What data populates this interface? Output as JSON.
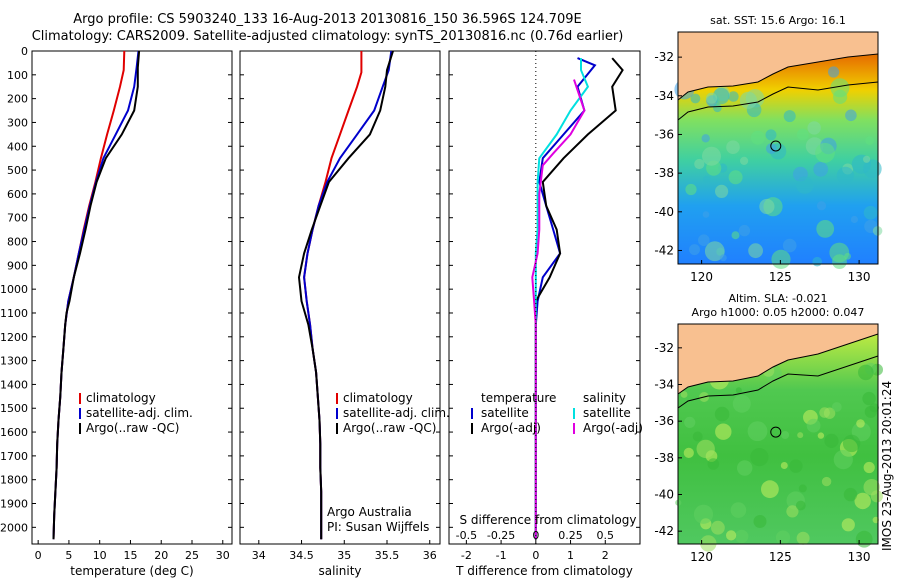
{
  "header": {
    "line1": "Argo profile: CS 5903240_133 16-Aug-2013 20130816_150 36.596S 124.709E",
    "line2": "Climatology: CARS2009. Satellite-adjusted climatology: synTS_20130816.nc (0.76d earlier)"
  },
  "colors": {
    "climatology": "#e00000",
    "satellite": "#0000cc",
    "argo": "#000000",
    "salinity_satellite": "#00e0e0",
    "salinity_argo": "#e000e0",
    "land": "#f8c090"
  },
  "footer_stamp": "IMOS 23-Aug-2013 20:01:24",
  "chart_data": [
    {
      "type": "line",
      "name": "temperature-profile",
      "xlabel": "temperature (deg C)",
      "ylabel": "",
      "xlim": [
        -1,
        31.5
      ],
      "ylim": [
        2070,
        0
      ],
      "xticks": [
        0,
        5,
        10,
        15,
        20,
        25,
        30
      ],
      "yticks": [
        0,
        100,
        200,
        300,
        400,
        500,
        600,
        700,
        800,
        900,
        1000,
        1100,
        1200,
        1300,
        1400,
        1500,
        1600,
        1700,
        1800,
        1900,
        2000
      ],
      "legend": [
        "climatology",
        "satellite-adj. clim.",
        "Argo(..raw -QC)"
      ],
      "series": [
        {
          "name": "climatology",
          "color": "#e00000",
          "points": [
            [
              14,
              0
            ],
            [
              13.9,
              80
            ],
            [
              13.3,
              150
            ],
            [
              12.3,
              250
            ],
            [
              11.2,
              350
            ],
            [
              10.2,
              450
            ],
            [
              9.3,
              550
            ],
            [
              8.3,
              650
            ],
            [
              7.4,
              750
            ],
            [
              6.6,
              850
            ],
            [
              5.8,
              950
            ],
            [
              4.9,
              1050
            ],
            [
              4.4,
              1150
            ],
            [
              4.1,
              1250
            ],
            [
              3.8,
              1350
            ],
            [
              3.6,
              1450
            ],
            [
              3.3,
              1550
            ],
            [
              3.1,
              1650
            ],
            [
              3,
              1750
            ],
            [
              2.8,
              1850
            ],
            [
              2.6,
              1950
            ],
            [
              2.5,
              2050
            ]
          ]
        },
        {
          "name": "satellite-adj. clim.",
          "color": "#0000cc",
          "points": [
            [
              16.3,
              0
            ],
            [
              16,
              70
            ],
            [
              15.6,
              150
            ],
            [
              14.6,
              250
            ],
            [
              12.6,
              350
            ],
            [
              10.6,
              450
            ],
            [
              9.4,
              550
            ],
            [
              8.4,
              650
            ],
            [
              7.5,
              750
            ],
            [
              6.6,
              850
            ],
            [
              5.8,
              950
            ],
            [
              4.9,
              1050
            ],
            [
              4.4,
              1150
            ],
            [
              4.1,
              1250
            ],
            [
              3.8,
              1350
            ],
            [
              3.6,
              1450
            ],
            [
              3.3,
              1550
            ],
            [
              3.1,
              1650
            ],
            [
              3,
              1750
            ],
            [
              2.8,
              1850
            ],
            [
              2.6,
              1950
            ],
            [
              2.5,
              2050
            ]
          ]
        },
        {
          "name": "Argo(..raw -QC)",
          "color": "#000000",
          "points": [
            [
              16.4,
              0
            ],
            [
              16.2,
              70
            ],
            [
              16.2,
              150
            ],
            [
              15.6,
              250
            ],
            [
              13.6,
              350
            ],
            [
              11,
              450
            ],
            [
              9.5,
              550
            ],
            [
              8.5,
              650
            ],
            [
              7.7,
              750
            ],
            [
              6.8,
              850
            ],
            [
              5.8,
              950
            ],
            [
              5.1,
              1050
            ],
            [
              4.6,
              1100
            ],
            [
              4.4,
              1150
            ],
            [
              4.1,
              1250
            ],
            [
              3.8,
              1350
            ],
            [
              3.6,
              1450
            ],
            [
              3.3,
              1550
            ],
            [
              3.1,
              1650
            ],
            [
              3,
              1750
            ],
            [
              2.8,
              1850
            ],
            [
              2.6,
              1950
            ],
            [
              2.5,
              2050
            ]
          ]
        }
      ]
    },
    {
      "type": "line",
      "name": "salinity-profile",
      "xlabel": "salinity",
      "ylabel": "",
      "xlim": [
        33.78,
        36.12
      ],
      "ylim": [
        2070,
        0
      ],
      "xticks": [
        34,
        34.5,
        35,
        35.5,
        36
      ],
      "legend": [
        "climatology",
        "satellite-adj. clim.",
        "Argo(..raw -QC)"
      ],
      "annotation": [
        "Argo Australia",
        "PI: Susan Wijffels"
      ],
      "series": [
        {
          "name": "climatology",
          "color": "#e00000",
          "points": [
            [
              35.2,
              0
            ],
            [
              35.2,
              90
            ],
            [
              35.15,
              150
            ],
            [
              35.05,
              250
            ],
            [
              34.95,
              350
            ],
            [
              34.85,
              450
            ],
            [
              34.78,
              550
            ],
            [
              34.7,
              650
            ],
            [
              34.63,
              750
            ],
            [
              34.57,
              850
            ],
            [
              34.53,
              950
            ],
            [
              34.56,
              1050
            ],
            [
              34.6,
              1150
            ],
            [
              34.63,
              1250
            ],
            [
              34.67,
              1350
            ],
            [
              34.69,
              1450
            ],
            [
              34.71,
              1550
            ],
            [
              34.72,
              1650
            ],
            [
              34.72,
              1750
            ],
            [
              34.73,
              1850
            ],
            [
              34.73,
              1950
            ],
            [
              34.73,
              2050
            ]
          ]
        },
        {
          "name": "satellite-adj. clim.",
          "color": "#0000cc",
          "points": [
            [
              35.55,
              0
            ],
            [
              35.52,
              80
            ],
            [
              35.45,
              150
            ],
            [
              35.35,
              250
            ],
            [
              35.15,
              350
            ],
            [
              34.95,
              450
            ],
            [
              34.8,
              550
            ],
            [
              34.7,
              650
            ],
            [
              34.63,
              750
            ],
            [
              34.57,
              850
            ],
            [
              34.53,
              950
            ],
            [
              34.56,
              1050
            ],
            [
              34.6,
              1150
            ],
            [
              34.63,
              1250
            ],
            [
              34.67,
              1350
            ],
            [
              34.69,
              1450
            ],
            [
              34.71,
              1550
            ],
            [
              34.72,
              1650
            ],
            [
              34.72,
              1750
            ],
            [
              34.73,
              1850
            ],
            [
              34.73,
              1950
            ],
            [
              34.73,
              2050
            ]
          ]
        },
        {
          "name": "Argo(..raw -QC)",
          "color": "#000000",
          "points": [
            [
              35.57,
              0
            ],
            [
              35.5,
              80
            ],
            [
              35.48,
              150
            ],
            [
              35.42,
              250
            ],
            [
              35.3,
              350
            ],
            [
              35.05,
              450
            ],
            [
              34.82,
              550
            ],
            [
              34.72,
              650
            ],
            [
              34.62,
              750
            ],
            [
              34.53,
              850
            ],
            [
              34.47,
              950
            ],
            [
              34.5,
              1050
            ],
            [
              34.58,
              1150
            ],
            [
              34.63,
              1250
            ],
            [
              34.67,
              1350
            ],
            [
              34.69,
              1450
            ],
            [
              34.71,
              1550
            ],
            [
              34.72,
              1650
            ],
            [
              34.72,
              1750
            ],
            [
              34.73,
              1850
            ],
            [
              34.73,
              1950
            ],
            [
              34.73,
              2050
            ]
          ]
        }
      ]
    },
    {
      "type": "line",
      "name": "difference-profile",
      "xlabel": "T difference from climatology",
      "xlabel_top": "S difference from climatology",
      "xlim": [
        -2.5,
        3
      ],
      "ylim": [
        2070,
        0
      ],
      "xticks": [
        -2,
        -1,
        0,
        1,
        2
      ],
      "s_tick_labels": [
        "-0.5",
        "-0.25",
        "0",
        "0.25",
        "0.5"
      ],
      "legend_header": [
        "temperature",
        "salinity"
      ],
      "legend": [
        "satellite",
        "Argo(-adj)",
        "satellite",
        "Argo(-adj)"
      ],
      "series": [
        {
          "name": "satellite",
          "color": "#0000cc",
          "points": [
            [
              1.2,
              30
            ],
            [
              1.7,
              60
            ],
            [
              1.2,
              150
            ],
            [
              1.4,
              250
            ],
            [
              0.8,
              350
            ],
            [
              0.2,
              450
            ],
            [
              0.1,
              550
            ],
            [
              0.3,
              650
            ],
            [
              0.5,
              750
            ],
            [
              0.7,
              850
            ],
            [
              0.2,
              950
            ],
            [
              0.05,
              1050
            ],
            [
              0,
              1150
            ],
            [
              0,
              1300
            ],
            [
              0,
              2050
            ]
          ]
        },
        {
          "name": "Argo(-adj)",
          "color": "#000000",
          "points": [
            [
              2.2,
              30
            ],
            [
              2.5,
              80
            ],
            [
              2.2,
              150
            ],
            [
              2.3,
              250
            ],
            [
              1.5,
              350
            ],
            [
              0.8,
              450
            ],
            [
              0.2,
              550
            ],
            [
              0.3,
              650
            ],
            [
              0.6,
              750
            ],
            [
              0.7,
              850
            ],
            [
              0.4,
              950
            ],
            [
              0,
              1050
            ],
            [
              0,
              1150
            ],
            [
              0,
              1300
            ],
            [
              0,
              2050
            ]
          ]
        },
        {
          "name": "salinity satellite",
          "color": "#00e0e0",
          "points": [
            [
              1.3,
              30
            ],
            [
              1.3,
              80
            ],
            [
              1.5,
              150
            ],
            [
              1,
              250
            ],
            [
              0.6,
              350
            ],
            [
              0.1,
              450
            ],
            [
              0.05,
              550
            ],
            [
              0.05,
              650
            ],
            [
              0.05,
              750
            ],
            [
              0,
              850
            ],
            [
              0,
              950
            ],
            [
              0,
              1050
            ],
            [
              0,
              1150
            ],
            [
              0,
              2050
            ]
          ]
        },
        {
          "name": "salinity Argo(-adj)",
          "color": "#e000e0",
          "points": [
            [
              1.1,
              120
            ],
            [
              1.4,
              250
            ],
            [
              1,
              350
            ],
            [
              0.5,
              430
            ],
            [
              0.2,
              480
            ],
            [
              0.1,
              600
            ],
            [
              0.1,
              750
            ],
            [
              0.05,
              850
            ],
            [
              -0.1,
              950
            ],
            [
              -0.05,
              1050
            ],
            [
              0,
              1150
            ],
            [
              0,
              2050
            ]
          ]
        }
      ]
    },
    {
      "type": "heatmap",
      "name": "sst-map",
      "title": "sat. SST: 15.6 Argo: 16.1",
      "xlim": [
        118.5,
        131.2
      ],
      "ylim": [
        -42.7,
        -30.7
      ],
      "xticks": [
        120,
        125,
        130
      ],
      "yticks": [
        -32,
        -34,
        -36,
        -38,
        -40,
        -42
      ],
      "marker": [
        124.709,
        -36.596
      ]
    },
    {
      "type": "heatmap",
      "name": "sla-map",
      "title": "Altim. SLA: -0.021",
      "subtitle": "Argo h1000: 0.05 h2000: 0.047",
      "xlim": [
        118.5,
        131.2
      ],
      "ylim": [
        -42.7,
        -30.7
      ],
      "xticks": [
        120,
        125,
        130
      ],
      "yticks": [
        -32,
        -34,
        -36,
        -38,
        -40,
        -42
      ],
      "marker": [
        124.709,
        -36.596
      ]
    }
  ]
}
